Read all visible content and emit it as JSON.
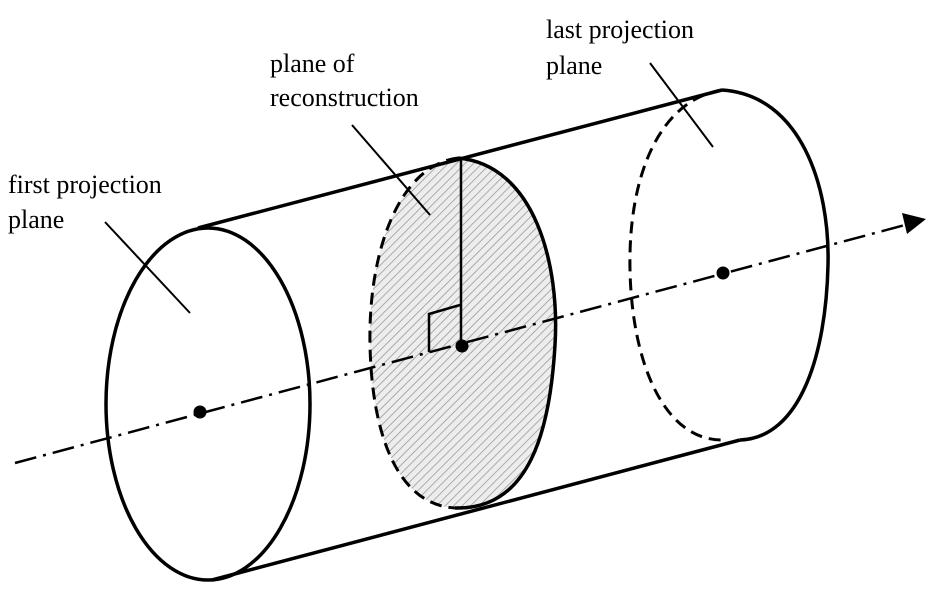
{
  "labels": {
    "first_line1": "first projection",
    "first_line2": "plane",
    "recon_line1": "plane of",
    "recon_line2": "reconstruction",
    "last_line1": "last projection",
    "last_line2": "plane"
  },
  "colors": {
    "stroke": "#000000",
    "hatch": "#9a9a9a",
    "hatch_bg": "#ededed"
  }
}
